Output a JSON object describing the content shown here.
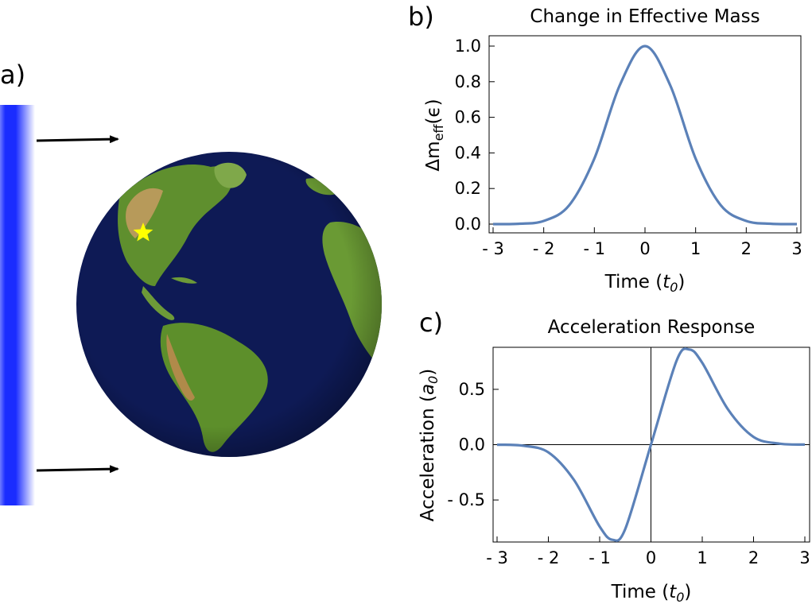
{
  "panels": {
    "a": {
      "label": "a)"
    },
    "b": {
      "label": "b)"
    },
    "c": {
      "label": "c)"
    }
  },
  "illustration": {
    "wave_color": "#1a2cff",
    "arrow_color": "#000000",
    "globe_ocean_color": "#0e1a55",
    "star_color": "#ffff00",
    "icons": [
      "wavefront-bar",
      "arrow-right-icon",
      "arrow-right-icon",
      "earth-globe",
      "star-icon"
    ]
  },
  "chart_data": [
    {
      "id": "b",
      "type": "line",
      "title": "Change in Effective Mass",
      "xlabel": "Time (t₀)",
      "ylabel": "Δm_eff(ε)",
      "xlim": [
        -3,
        3
      ],
      "ylim": [
        0,
        1.0
      ],
      "x_ticks": [
        "- 3",
        "- 2",
        "- 1",
        "0",
        "1",
        "2",
        "3"
      ],
      "x_tick_values": [
        -3,
        -2,
        -1,
        0,
        1,
        2,
        3
      ],
      "y_ticks": [
        "0.0",
        "0.2",
        "0.4",
        "0.6",
        "0.8",
        "1.0"
      ],
      "y_tick_values": [
        0,
        0.2,
        0.4,
        0.6,
        0.8,
        1.0
      ],
      "grid": false,
      "frame": "box",
      "line_color": "#5b81b8",
      "x": [
        -3,
        -2.5,
        -2,
        -1.5,
        -1,
        -0.5,
        0,
        0.5,
        1,
        1.5,
        2,
        2.5,
        3
      ],
      "y": [
        0.0001,
        0.0019,
        0.018,
        0.105,
        0.368,
        0.779,
        1.0,
        0.779,
        0.368,
        0.105,
        0.018,
        0.0019,
        0.0001
      ]
    },
    {
      "id": "c",
      "type": "line",
      "title": "Acceleration Response",
      "xlabel": "Time (t₀)",
      "ylabel": "Acceleration (a₀)",
      "xlim": [
        -3,
        3
      ],
      "ylim": [
        -0.88,
        0.88
      ],
      "x_ticks": [
        "- 3",
        "- 2",
        "- 1",
        "0",
        "1",
        "2",
        "3"
      ],
      "x_tick_values": [
        -3,
        -2,
        -1,
        0,
        1,
        2,
        3
      ],
      "y_ticks": [
        "- 0.5",
        "0.0",
        "0.5"
      ],
      "y_tick_values": [
        -0.5,
        0,
        0.5
      ],
      "grid": false,
      "frame": "box",
      "zero_axes": true,
      "line_color": "#5b81b8",
      "x": [
        -3,
        -2.5,
        -2,
        -1.5,
        -1,
        -0.75,
        -0.5,
        0,
        0.5,
        0.75,
        1,
        1.5,
        2,
        2.5,
        3
      ],
      "y": [
        -0.0007,
        -0.009,
        -0.07,
        -0.32,
        -0.74,
        -0.86,
        -0.76,
        0,
        0.76,
        0.86,
        0.74,
        0.32,
        0.07,
        0.009,
        0.0007
      ]
    }
  ]
}
